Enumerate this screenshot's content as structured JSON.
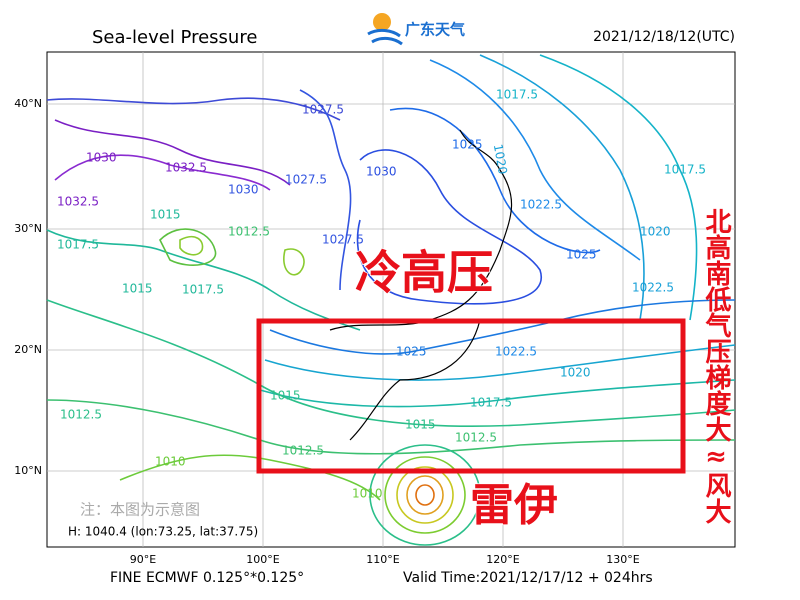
{
  "header": {
    "title": "Sea-level Pressure",
    "logo": "广东天气",
    "date": "2021/12/18/12(UTC)"
  },
  "map": {
    "lat_labels": [
      "40°N",
      "30°N",
      "20°N",
      "10°N"
    ],
    "lon_labels": [
      "90°E",
      "100°E",
      "110°E",
      "120°E",
      "130°E"
    ],
    "contour_labels": [
      "1027.5",
      "1030",
      "1032.5",
      "1030",
      "1032.5",
      "1027.5",
      "1030",
      "1025",
      "1017.5",
      "1022.5",
      "1025",
      "1020",
      "1017.5",
      "1022.5",
      "1015",
      "1012.5",
      "1017.5",
      "1015",
      "1017.5",
      "1027.5",
      "1025",
      "1022.5",
      "1020",
      "1017.5",
      "1015",
      "1012.5",
      "1015",
      "1012.5",
      "1012.5",
      "1010",
      "1010",
      "1020"
    ],
    "high_label": "冷高压",
    "typhoon_label": "雷伊",
    "side_note": "北高南低气压梯度大≈风大",
    "note": "注：本图为示意图",
    "info": "H: 1040.4 (lon:73.25, lat:37.75)"
  },
  "footer": {
    "model": "FINE ECMWF 0.125°*0.125°",
    "valid": "Valid Time:2021/12/17/12 + 024hrs"
  }
}
